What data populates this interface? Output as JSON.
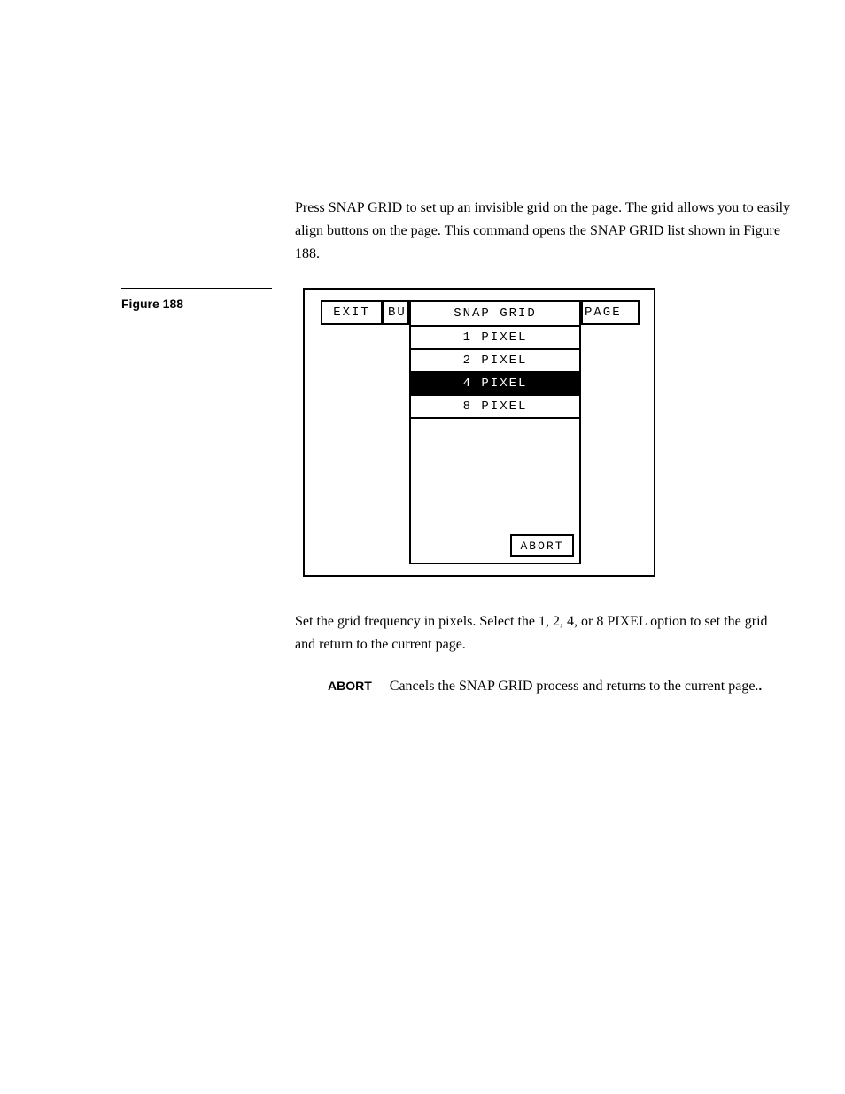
{
  "intro": "Press SNAP GRID to set up an invisible grid on the page. The grid allows you to easily align buttons on the page. This command opens the SNAP GRID list shown in Figure 188.",
  "figure_label": "Figure 188",
  "screen": {
    "exit": "EXIT",
    "bu": "BU",
    "page": "PAGE",
    "list_title": "SNAP GRID",
    "items": [
      "1 PIXEL",
      "2 PIXEL",
      "4 PIXEL",
      "8 PIXEL"
    ],
    "selected_index": 2,
    "abort": "ABORT"
  },
  "post": "Set the grid frequency in pixels. Select the 1, 2, 4, or 8 PIXEL option to set the grid and return to the current page.",
  "abort_label": "ABORT",
  "abort_desc": "Cancels the SNAP GRID process and returns to the current page.",
  "colors": {
    "bg": "#ffffff",
    "text": "#000000",
    "selected_bg": "#000000",
    "selected_text": "#ffffff"
  }
}
